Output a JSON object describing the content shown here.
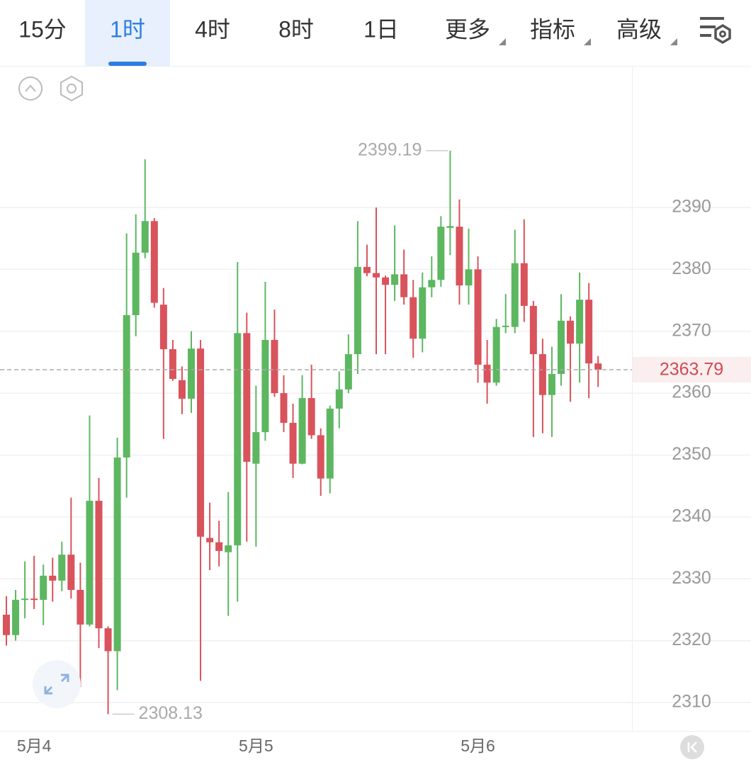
{
  "toolbar": {
    "tabs": [
      "15分",
      "1时",
      "4时",
      "8时",
      "1日",
      "更多",
      "指标",
      "高级"
    ],
    "active": 1
  },
  "chart_data": {
    "type": "candlestick",
    "categories": [
      null,
      null,
      null,
      "5月4",
      null,
      null,
      null,
      null,
      null,
      null,
      null,
      null,
      null,
      null,
      null,
      null,
      null,
      null,
      null,
      null,
      null,
      null,
      null,
      null,
      null,
      null,
      null,
      "5月5",
      null,
      null,
      null,
      null,
      null,
      null,
      null,
      null,
      null,
      null,
      null,
      null,
      null,
      null,
      null,
      null,
      null,
      null,
      null,
      null,
      null,
      null,
      null,
      "5月6",
      null,
      null,
      null,
      null,
      null,
      null,
      null,
      null,
      null,
      null,
      null,
      null,
      null
    ],
    "open": [
      2324.2,
      2320.9,
      2326.6,
      2326.8,
      2326.6,
      2330.5,
      2329.7,
      2333.9,
      2328.2,
      2322.6,
      2342.6,
      2322.0,
      2318.3,
      2349.6,
      2372.6,
      2382.7,
      2387.8,
      2374.3,
      2367.1,
      2362.1,
      2359.1,
      2367.2,
      2336.6,
      2335.9,
      2334.3,
      2335.4,
      2369.7,
      2348.6,
      2353.7,
      2368.6,
      2360.0,
      2355.2,
      2348.6,
      2359.2,
      2353.2,
      2346.2,
      2357.5,
      2360.6,
      2366.3,
      2380.4,
      2379.4,
      2378.7,
      2377.5,
      2379.2,
      2375.5,
      2368.8,
      2377.1,
      2378.3,
      2386.7,
      2386.9,
      2377.4,
      2380.0,
      2364.6,
      2361.7,
      2370.7,
      2370.7,
      2381.0,
      2374.1,
      2366.3,
      2359.7,
      2363.1,
      2371.7,
      2368.0,
      2375.1,
      2364.8
    ],
    "high": [
      2327.2,
      2328.2,
      2332.8,
      2333.7,
      2332.3,
      2333.4,
      2336.0,
      2343.1,
      2332.6,
      2356.4,
      2346.3,
      2322.3,
      2352.8,
      2385.8,
      2388.9,
      2397.8,
      2388.3,
      2377.0,
      2368.6,
      2364.3,
      2370.0,
      2368.6,
      2342.3,
      2339.4,
      2344.0,
      2381.2,
      2373.0,
      2361.2,
      2378.0,
      2373.5,
      2362.9,
      2358.3,
      2362.9,
      2364.6,
      2354.3,
      2358.0,
      2363.5,
      2369.5,
      2387.8,
      2384.0,
      2390.0,
      2379.0,
      2387.1,
      2383.2,
      2378.3,
      2379.5,
      2382.1,
      2388.6,
      2399.19,
      2391.3,
      2386.6,
      2382.1,
      2368.6,
      2372.0,
      2376.0,
      2386.4,
      2388.1,
      2374.9,
      2368.8,
      2367.5,
      2376.0,
      2372.4,
      2379.5,
      2377.8,
      2366.0
    ],
    "low": [
      2319.2,
      2320.0,
      2323.6,
      2325.1,
      2322.5,
      2326.3,
      2328.0,
      2326.8,
      2312.5,
      2322.3,
      2318.8,
      2308.13,
      2312.0,
      2343.1,
      2369.2,
      2381.8,
      2373.8,
      2352.6,
      2362.0,
      2356.6,
      2356.8,
      2313.5,
      2331.4,
      2332.0,
      2324.0,
      2326.3,
      2336.0,
      2335.2,
      2352.3,
      2359.4,
      2353.7,
      2346.3,
      2348.5,
      2352.6,
      2343.4,
      2343.8,
      2354.3,
      2360.0,
      2363.1,
      2378.9,
      2366.3,
      2366.3,
      2374.9,
      2374.3,
      2365.7,
      2366.6,
      2375.5,
      2377.2,
      2382.3,
      2374.3,
      2374.3,
      2361.7,
      2358.3,
      2361.2,
      2369.7,
      2369.7,
      2371.5,
      2352.9,
      2353.5,
      2352.9,
      2361.2,
      2358.6,
      2361.7,
      2359.2,
      2361.0
    ],
    "close": [
      2320.9,
      2326.6,
      2326.8,
      2326.6,
      2330.5,
      2329.7,
      2333.9,
      2328.2,
      2322.6,
      2342.6,
      2322.0,
      2318.3,
      2349.6,
      2372.6,
      2382.7,
      2387.8,
      2374.6,
      2367.1,
      2362.3,
      2359.1,
      2367.2,
      2336.8,
      2335.9,
      2334.5,
      2335.4,
      2369.7,
      2348.9,
      2353.7,
      2368.6,
      2360.0,
      2355.2,
      2348.6,
      2359.2,
      2353.2,
      2346.2,
      2357.5,
      2360.6,
      2366.3,
      2380.4,
      2379.4,
      2378.7,
      2377.5,
      2379.2,
      2375.5,
      2368.8,
      2377.1,
      2378.3,
      2386.9,
      2387.0,
      2377.4,
      2380.0,
      2364.6,
      2361.7,
      2370.7,
      2370.9,
      2381.0,
      2374.1,
      2366.3,
      2359.7,
      2363.1,
      2371.7,
      2368.0,
      2375.1,
      2364.8,
      2363.79
    ],
    "up_color": "#5db760",
    "down_color": "#d9535c",
    "ylim": [
      2305.42,
      2412.66
    ],
    "yticks": [
      2310,
      2320,
      2330,
      2340,
      2350,
      2360,
      2370,
      2380,
      2390
    ],
    "grid": true
  }
}
